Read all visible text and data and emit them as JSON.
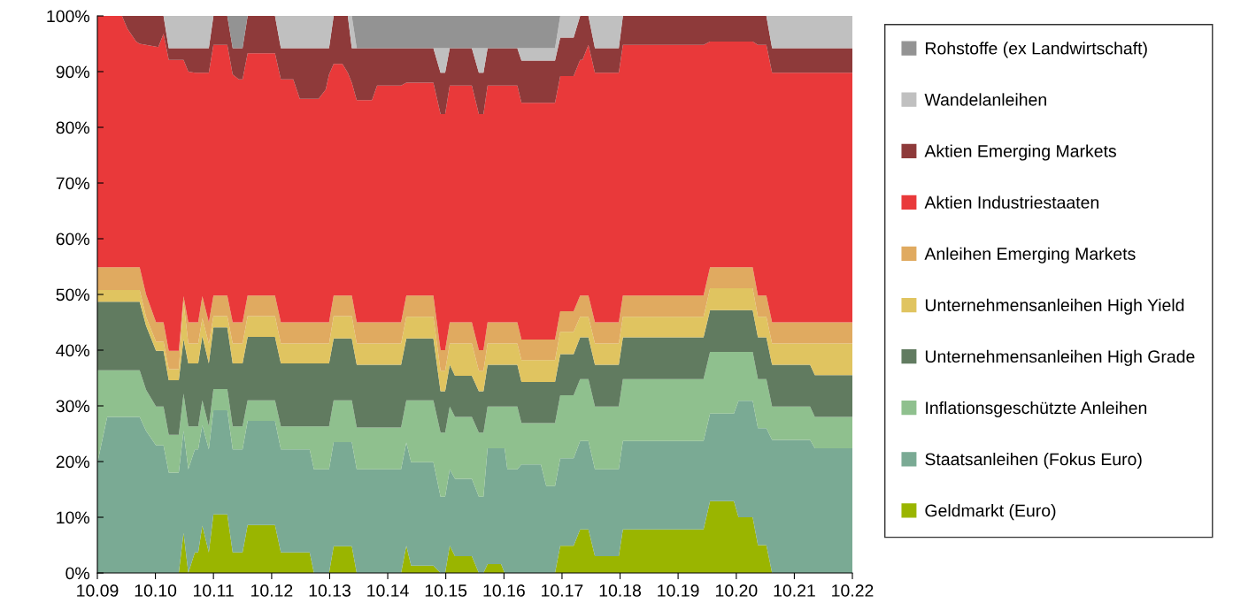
{
  "chart_data": {
    "type": "area",
    "stacked": true,
    "legend": "right",
    "grid": false,
    "x": [
      "2009-10-01",
      "2009-12-02",
      "2010-03-05",
      "2010-04-08",
      "2010-06-02",
      "2010-06-24",
      "2010-08-03",
      "2010-10-05",
      "2010-10-19",
      "2010-11-21",
      "2010-12-24",
      "2011-02-25",
      "2011-03-27",
      "2011-04-26",
      "2011-06-06",
      "2011-06-27",
      "2011-07-23",
      "2011-09-02",
      "2011-10-01",
      "2011-12-27",
      "2012-01-30",
      "2012-03-09",
      "2012-04-01",
      "2012-05-03",
      "2012-10-22",
      "2012-11-28",
      "2013-02-14",
      "2013-03-27",
      "2013-05-28",
      "2013-06-24",
      "2013-07-23",
      "2013-09-06",
      "2013-09-27",
      "2013-10-26",
      "2013-12-20",
      "2014-01-23",
      "2014-02-17",
      "2014-03-20",
      "2014-06-24",
      "2014-07-26",
      "2014-12-24",
      "2015-01-26",
      "2015-02-25",
      "2015-07-15",
      "2015-08-29",
      "2015-09-27",
      "2015-10-26",
      "2015-11-28",
      "2016-03-13",
      "2016-04-26",
      "2016-05-25",
      "2016-06-20",
      "2016-09-13",
      "2016-10-05",
      "2016-10-22",
      "2016-12-24",
      "2017-01-19",
      "2017-05-21",
      "2017-06-24",
      "2017-08-18",
      "2017-09-20",
      "2017-12-13",
      "2018-01-23",
      "2018-02-07",
      "2018-03-16",
      "2018-04-26",
      "2018-09-23",
      "2018-10-19",
      "2020-03-09",
      "2020-04-19",
      "2020-09-16",
      "2020-10-15",
      "2021-01-12",
      "2021-02-14",
      "2021-04-08",
      "2021-05-14",
      "2022-01-08",
      "2022-02-07",
      "2022-10-01"
    ],
    "xlim": [
      "2009-10-01",
      "2022-10-01"
    ],
    "xticks": [
      {
        "value": "2009-10-01",
        "label": "10.09"
      },
      {
        "value": "2010-10-01",
        "label": "10.10"
      },
      {
        "value": "2011-10-01",
        "label": "10.11"
      },
      {
        "value": "2012-10-01",
        "label": "10.12"
      },
      {
        "value": "2013-10-01",
        "label": "10.13"
      },
      {
        "value": "2014-10-01",
        "label": "10.14"
      },
      {
        "value": "2015-10-01",
        "label": "10.15"
      },
      {
        "value": "2016-10-01",
        "label": "10.16"
      },
      {
        "value": "2017-10-01",
        "label": "10.17"
      },
      {
        "value": "2018-10-01",
        "label": "10.18"
      },
      {
        "value": "2019-10-01",
        "label": "10.19"
      },
      {
        "value": "2020-10-01",
        "label": "10.20"
      },
      {
        "value": "2021-10-01",
        "label": "10.21"
      },
      {
        "value": "2022-10-01",
        "label": "10.22"
      }
    ],
    "ylim": [
      0,
      100
    ],
    "yticks": [
      {
        "value": 0,
        "label": "0%"
      },
      {
        "value": 10,
        "label": "10%"
      },
      {
        "value": 20,
        "label": "20%"
      },
      {
        "value": 30,
        "label": "30%"
      },
      {
        "value": 40,
        "label": "40%"
      },
      {
        "value": 50,
        "label": "50%"
      },
      {
        "value": 60,
        "label": "60%"
      },
      {
        "value": 70,
        "label": "70%"
      },
      {
        "value": 80,
        "label": "80%"
      },
      {
        "value": 90,
        "label": "90%"
      },
      {
        "value": 100,
        "label": "100%"
      }
    ],
    "series": [
      {
        "name": "Geldmarkt (Euro)",
        "color": "#9ab500",
        "values": [
          0,
          0,
          0,
          0,
          0,
          0,
          0,
          0,
          0,
          0,
          0,
          0,
          7.2,
          0,
          3.7,
          3.7,
          8.5,
          3.7,
          10.5,
          10.5,
          3.7,
          3.7,
          3.7,
          8.6,
          8.6,
          3.7,
          3.7,
          3.7,
          3.7,
          0,
          0,
          0,
          0,
          4.8,
          4.8,
          4.8,
          4.8,
          0,
          0,
          0,
          0,
          4.9,
          1.3,
          1.3,
          0,
          0,
          4.9,
          3,
          3,
          0,
          0,
          1.6,
          1.6,
          0,
          0,
          0,
          0,
          0,
          0,
          0,
          4.9,
          4.9,
          7.8,
          7.8,
          7.8,
          3,
          3,
          7.8,
          7.8,
          12.9,
          12.9,
          10,
          10,
          5,
          5,
          0,
          0,
          0,
          0
        ]
      },
      {
        "name": "Staatsanleihen (Fokus Euro)",
        "color": "#7aaa94",
        "values": [
          19.7,
          28,
          28,
          28,
          28,
          28,
          25.5,
          22.9,
          22.9,
          22.9,
          18,
          18,
          18.3,
          18.6,
          18.5,
          18.5,
          18,
          18.5,
          18.7,
          18.7,
          18.5,
          18.5,
          18.5,
          18.7,
          18.7,
          18.5,
          18.5,
          18.5,
          18.5,
          18.6,
          18.6,
          18.6,
          18.6,
          18.7,
          18.7,
          18.7,
          18.7,
          18.6,
          18.6,
          18.6,
          18.6,
          18.5,
          18.6,
          18.6,
          13.7,
          13.7,
          13.7,
          13.9,
          13.9,
          13.7,
          13.7,
          20.8,
          20.8,
          22.4,
          18.6,
          18.6,
          19.5,
          19.5,
          15.6,
          15.6,
          15.7,
          15.7,
          15.9,
          15.9,
          15.9,
          15.6,
          15.6,
          15.9,
          15.9,
          15.7,
          15.7,
          20.9,
          20.9,
          21,
          21,
          23.9,
          23.9,
          22.4,
          22.4
        ]
      },
      {
        "name": "Inflationsgeschützte Anleihen",
        "color": "#8fc08e",
        "values": [
          16.7,
          8.4,
          8.4,
          8.4,
          8.4,
          8.4,
          7.4,
          7,
          7,
          7,
          6.8,
          6.8,
          6.7,
          7.7,
          4.1,
          4.1,
          4.5,
          4.1,
          3.8,
          3.8,
          4.1,
          4.1,
          4.1,
          3.7,
          3.7,
          4.1,
          4.1,
          4.1,
          4.1,
          7.7,
          7.7,
          7.7,
          7.7,
          7.5,
          7.5,
          7.5,
          7.5,
          7.5,
          7.5,
          7.5,
          7.5,
          7.6,
          11.1,
          11.1,
          11.5,
          11.5,
          11.3,
          11.1,
          11.1,
          11.5,
          11.5,
          7.5,
          7.5,
          7.5,
          11.3,
          11.3,
          7.4,
          7.4,
          11.3,
          11.3,
          11.3,
          11.3,
          11.1,
          11.1,
          11.1,
          11.3,
          11.3,
          11.1,
          11.1,
          11.1,
          11.1,
          8.8,
          8.8,
          8.8,
          8.8,
          6,
          6,
          5.6,
          5.6
        ]
      },
      {
        "name": "Unternehmensanleihen High Grade",
        "color": "#617b60",
        "values": [
          12.3,
          12.3,
          12.3,
          12.3,
          12.3,
          12.3,
          11.5,
          10,
          10,
          10,
          9.8,
          9.8,
          9.8,
          11.3,
          11.3,
          11.3,
          11.5,
          11.3,
          11.1,
          11.1,
          11.3,
          11.3,
          11.3,
          11.4,
          11.4,
          11.3,
          11.3,
          11.3,
          11.3,
          11.3,
          11.3,
          11.3,
          11.3,
          11.1,
          11.1,
          11.1,
          11.1,
          11.3,
          11.3,
          11.3,
          11.3,
          11.1,
          11.1,
          11.1,
          7.4,
          7.4,
          7.5,
          7.4,
          7.4,
          7.4,
          7.4,
          7.5,
          7.5,
          7.5,
          7.5,
          7.5,
          7.4,
          7.4,
          7.4,
          7.4,
          7.4,
          7.4,
          7.5,
          7.5,
          7.5,
          7.5,
          7.5,
          7.5,
          7.5,
          7.5,
          7.5,
          7.5,
          7.5,
          7.5,
          7.5,
          7.5,
          7.5,
          7.5,
          7.5
        ]
      },
      {
        "name": "Unternehmensanleihen High Yield",
        "color": "#e0c460",
        "values": [
          2.1,
          2.1,
          2.1,
          2.1,
          2.1,
          2.1,
          1.6,
          1.6,
          1.6,
          1.6,
          2,
          2,
          6.7,
          3.6,
          3.6,
          3.6,
          3.2,
          3.6,
          2,
          2,
          3.6,
          3.6,
          3.6,
          3.7,
          3.7,
          3.6,
          3.6,
          3.6,
          3.6,
          3.6,
          3.6,
          3.6,
          3.6,
          4,
          4,
          4,
          4,
          3.8,
          3.8,
          3.8,
          3.8,
          3.9,
          3.9,
          3.9,
          3.7,
          3.7,
          3.8,
          5.8,
          5.8,
          3.7,
          3.7,
          3.8,
          3.8,
          3.8,
          3.8,
          3.8,
          3.9,
          3.9,
          3.9,
          3.9,
          4,
          4,
          3.7,
          3.7,
          3.7,
          3.8,
          3.8,
          3.7,
          3.7,
          3.9,
          3.9,
          3.9,
          3.9,
          3.7,
          3.7,
          3.8,
          3.8,
          5.7,
          5.7
        ]
      },
      {
        "name": "Anleihen Emerging Markets",
        "color": "#e0aa60",
        "values": [
          4.1,
          4.1,
          4.1,
          4.1,
          4.1,
          4.1,
          4,
          3.5,
          3.5,
          3.5,
          3.3,
          3.3,
          1,
          3.8,
          3.8,
          3.8,
          4,
          3.8,
          3.7,
          3.7,
          3.8,
          3.8,
          3.8,
          3.7,
          3.7,
          3.8,
          3.8,
          3.8,
          3.8,
          3.8,
          3.8,
          3.8,
          3.8,
          3.7,
          3.7,
          3.7,
          3.7,
          3.8,
          3.8,
          3.8,
          3.8,
          3.8,
          3.8,
          3.8,
          3.7,
          3.7,
          3.8,
          3.8,
          3.8,
          3.7,
          3.7,
          3.8,
          3.8,
          3.8,
          3.8,
          3.8,
          3.7,
          3.7,
          3.7,
          3.7,
          3.7,
          3.7,
          3.8,
          3.8,
          3.8,
          3.8,
          3.8,
          3.8,
          3.8,
          3.8,
          3.8,
          3.8,
          3.8,
          3.8,
          3.8,
          3.8,
          3.8,
          3.8,
          3.8
        ]
      },
      {
        "name": "Aktien Industriestaaten",
        "color": "#e9393a",
        "values": [
          45.1,
          45.1,
          45.1,
          42.8,
          40.5,
          40.1,
          44.8,
          49.5,
          49.4,
          51.8,
          52.2,
          52.2,
          42.4,
          45,
          44.8,
          44.8,
          40.1,
          44.8,
          45,
          45,
          44.5,
          43.6,
          43.6,
          43.5,
          43.5,
          43.6,
          43.6,
          40.1,
          40.1,
          40.1,
          40.1,
          41.8,
          44.5,
          41.6,
          41.6,
          40,
          38.2,
          39.9,
          39.9,
          42.5,
          42.5,
          38.2,
          38.2,
          38.2,
          42.4,
          42.4,
          42.5,
          42.5,
          42.5,
          42.4,
          42.4,
          42.5,
          42.5,
          42.5,
          42.5,
          42.5,
          42.5,
          42.5,
          42.5,
          42.5,
          42.2,
          42.2,
          42.3,
          42.3,
          45,
          44.8,
          44.8,
          45,
          45,
          40.5,
          40.5,
          40.5,
          40.5,
          45,
          45,
          44.8,
          44.8,
          44.8,
          44.8
        ]
      },
      {
        "name": "Aktien Emerging Markets",
        "color": "#8e3a3a",
        "values": [
          0,
          0,
          0,
          2.3,
          4.6,
          5,
          5.2,
          5.5,
          5.6,
          3.2,
          2.1,
          2.1,
          2.1,
          4.2,
          4.4,
          4.4,
          4.4,
          4.4,
          5.2,
          5.2,
          4.7,
          5.6,
          5.6,
          6.7,
          6.7,
          5.6,
          5.6,
          9.1,
          9.1,
          9.1,
          9.1,
          7.4,
          4.7,
          8.6,
          8.6,
          10.2,
          6.2,
          9.3,
          9.3,
          6.7,
          6.7,
          6.2,
          6.2,
          6.2,
          7.4,
          7.4,
          6.7,
          6.7,
          6.7,
          7.4,
          7.4,
          6.7,
          6.7,
          6.7,
          6.7,
          6.7,
          7.6,
          7.6,
          7.6,
          7.6,
          6.9,
          6.9,
          7.9,
          7.9,
          5.2,
          4.4,
          4.4,
          5.2,
          5.2,
          4.6,
          4.6,
          4.6,
          4.6,
          5.2,
          5.2,
          4.4,
          4.4,
          4.4,
          4.4
        ]
      },
      {
        "name": "Wandelanleihen",
        "color": "#c0c0c0",
        "values": [
          0,
          0,
          0,
          0,
          0,
          0,
          0,
          0,
          0,
          0,
          5.8,
          5.8,
          5.8,
          5.8,
          5.8,
          5.8,
          5.8,
          5.8,
          0,
          0,
          0,
          0,
          0,
          0,
          0,
          5.8,
          5.8,
          5.8,
          5.8,
          5.8,
          5.8,
          5.8,
          5.8,
          0,
          0,
          0,
          5.8,
          0,
          0,
          0,
          0,
          0,
          0,
          0,
          4.4,
          4.4,
          0,
          0,
          0,
          4.4,
          4.4,
          0,
          0,
          0,
          0,
          0,
          2.2,
          2.2,
          2.2,
          2.2,
          3.9,
          3.9,
          0,
          0,
          0,
          5.8,
          5.8,
          0,
          0,
          0,
          0,
          0,
          0,
          0,
          0,
          5.8,
          5.8,
          5.8,
          5.8
        ]
      },
      {
        "name": "Rohstoffe (ex Landwirtschaft)",
        "color": "#939393",
        "values": [
          0,
          0,
          0,
          0,
          0,
          0,
          0,
          0,
          0,
          0,
          0,
          0,
          0,
          0,
          0,
          0,
          0,
          0,
          0,
          0,
          5.8,
          5.8,
          5.8,
          0,
          0,
          0,
          0,
          0,
          0,
          0,
          0,
          0,
          0,
          0,
          0,
          0,
          0,
          5.8,
          5.8,
          5.8,
          5.8,
          5.8,
          5.8,
          5.8,
          5.8,
          5.8,
          5.8,
          5.8,
          5.8,
          5.8,
          5.8,
          5.8,
          5.8,
          5.8,
          5.8,
          5.8,
          5.8,
          5.8,
          5.8,
          5.8,
          0,
          0,
          0,
          0,
          0,
          0,
          0,
          0,
          0,
          0,
          0,
          0,
          0,
          0,
          0,
          0,
          0,
          0,
          0
        ]
      }
    ]
  }
}
